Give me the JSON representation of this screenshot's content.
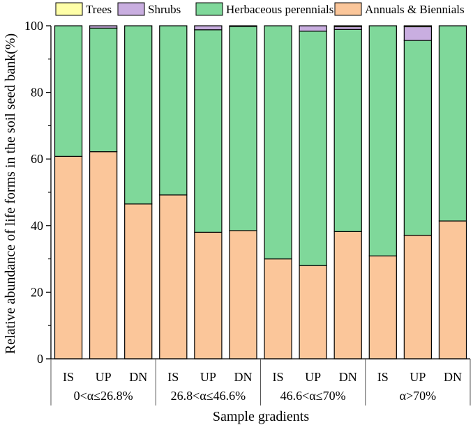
{
  "chart_data": {
    "type": "stacked-bar",
    "xlabel": "Sample gradients",
    "ylabel": "Relative abundance of life forms in the soil seed bank(%)",
    "ylim": [
      0,
      100
    ],
    "yticks": [
      0,
      20,
      40,
      60,
      80,
      100
    ],
    "legend_position": "top",
    "groups": [
      {
        "label": "0<α≤26.8%",
        "categories": [
          "IS",
          "UP",
          "DN"
        ]
      },
      {
        "label": "26.8<α≤46.6%",
        "categories": [
          "IS",
          "UP",
          "DN"
        ]
      },
      {
        "label": "46.6<α≤70%",
        "categories": [
          "IS",
          "UP",
          "DN"
        ]
      },
      {
        "label": "α>70%",
        "categories": [
          "IS",
          "UP",
          "DN"
        ]
      }
    ],
    "series": [
      {
        "name": "Annuals & Biennials",
        "color": "#FBC69A",
        "values": [
          60.8,
          62.2,
          46.5,
          49.2,
          38.0,
          38.5,
          30.0,
          28.0,
          38.2,
          30.9,
          37.1,
          41.4
        ]
      },
      {
        "name": "Herbaceous perennials",
        "color": "#7FD89A",
        "values": [
          39.2,
          37.1,
          53.5,
          50.8,
          60.8,
          61.3,
          70.0,
          70.4,
          60.7,
          69.1,
          58.5,
          58.6
        ]
      },
      {
        "name": "Shrubs",
        "color": "#C9AEE0",
        "values": [
          0.0,
          0.7,
          0.0,
          0.0,
          1.2,
          0.2,
          0.0,
          1.6,
          0.8,
          0.0,
          4.1,
          0.0
        ]
      },
      {
        "name": "Trees",
        "color": "#FFFFA8",
        "values": [
          0.0,
          0.0,
          0.0,
          0.0,
          0.0,
          0.0,
          0.0,
          0.0,
          0.3,
          0.0,
          0.3,
          0.0
        ]
      }
    ],
    "legend_order": [
      "Trees",
      "Shrubs",
      "Herbaceous perennials",
      "Annuals & Biennials"
    ]
  }
}
